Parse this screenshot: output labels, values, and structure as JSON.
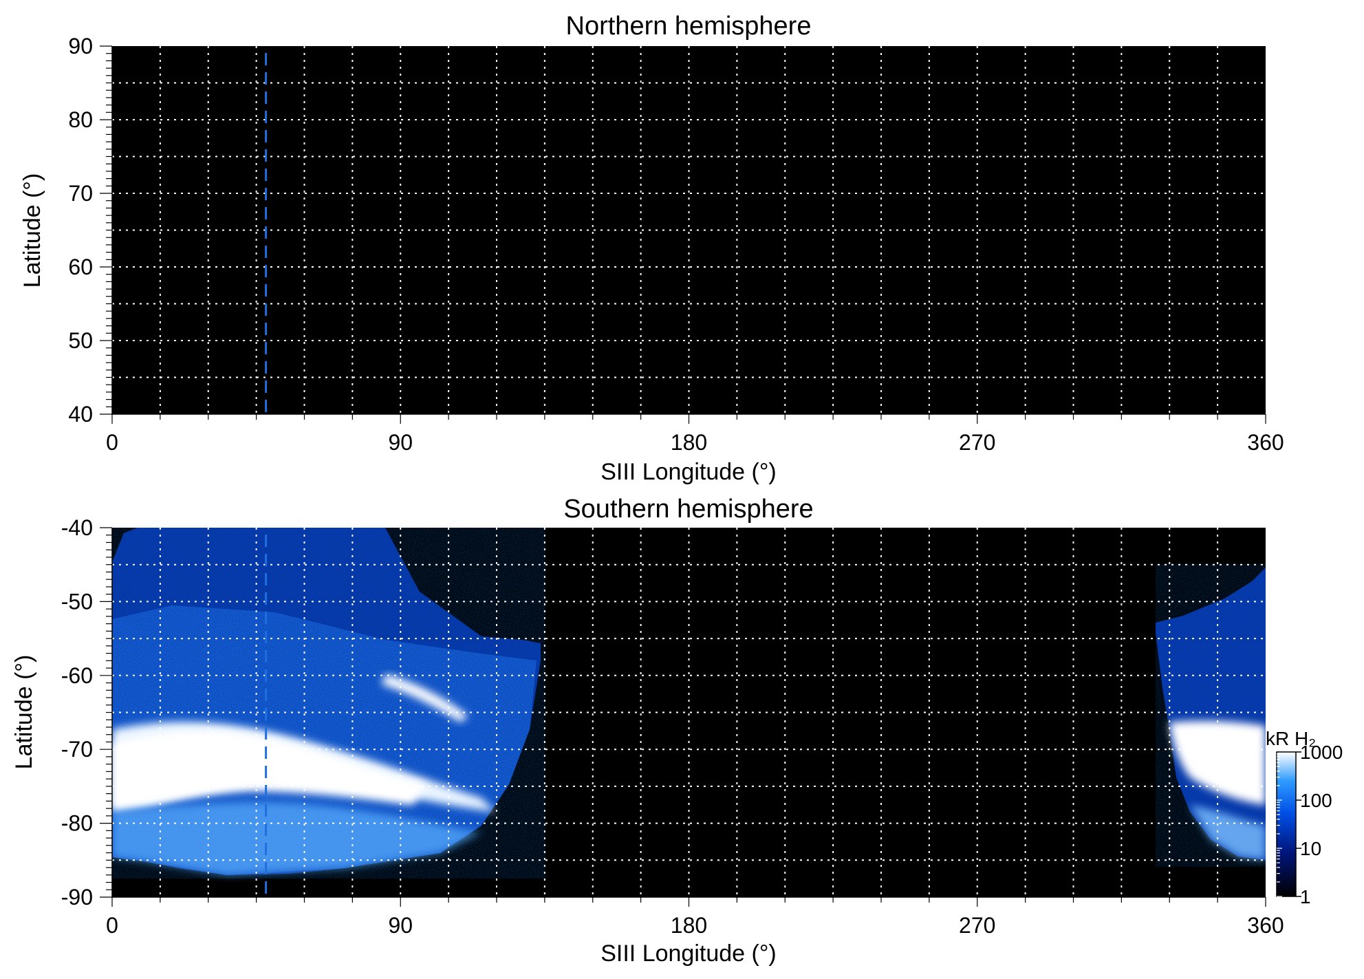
{
  "chart_data": [
    {
      "type": "heatmap",
      "title": "Northern hemisphere",
      "xlabel": "SIII Longitude (°)",
      "ylabel": "Latitude (°)",
      "xlim": [
        0,
        360
      ],
      "ylim": [
        40,
        90
      ],
      "xticks": [
        0,
        90,
        180,
        270,
        360
      ],
      "yticks": [
        40,
        50,
        60,
        70,
        80,
        90
      ],
      "grid": true,
      "grid_x_step": 15,
      "grid_y_step": 5,
      "marker_line": {
        "longitude": 48,
        "color": "#1f6fe0",
        "style": "dashed"
      },
      "emission": []
    },
    {
      "type": "heatmap",
      "title": "Southern hemisphere",
      "xlabel": "SIII Longitude (°)",
      "ylabel": "Latitude (°)",
      "xlim": [
        0,
        360
      ],
      "ylim": [
        -90,
        -40
      ],
      "xticks": [
        0,
        90,
        180,
        270,
        360
      ],
      "yticks": [
        -90,
        -80,
        -70,
        -60,
        -50,
        -40
      ],
      "grid": true,
      "grid_x_step": 15,
      "grid_y_step": 5,
      "marker_line": {
        "longitude": 48,
        "color": "#1f6fe0",
        "style": "dashed"
      },
      "emission": [
        {
          "lon_range": [
            0,
            133
          ],
          "lat_range": [
            -87,
            -40
          ],
          "description_level": "diffuse 10-100 kR poleward, main oval 1000 kR near -70 to -78"
        },
        {
          "lon_range": [
            325,
            360
          ],
          "lat_range": [
            -85,
            -45
          ],
          "description_level": "main oval 1000 kR near -70 to -80"
        }
      ],
      "colorbar": {
        "label": "kR H₂",
        "scale": "log",
        "range": [
          1,
          1000
        ],
        "ticks": [
          1,
          10,
          100,
          1000
        ],
        "colors": [
          "#000000",
          "#00157a",
          "#0050e6",
          "#2f9bff",
          "#ffffff"
        ]
      }
    }
  ]
}
